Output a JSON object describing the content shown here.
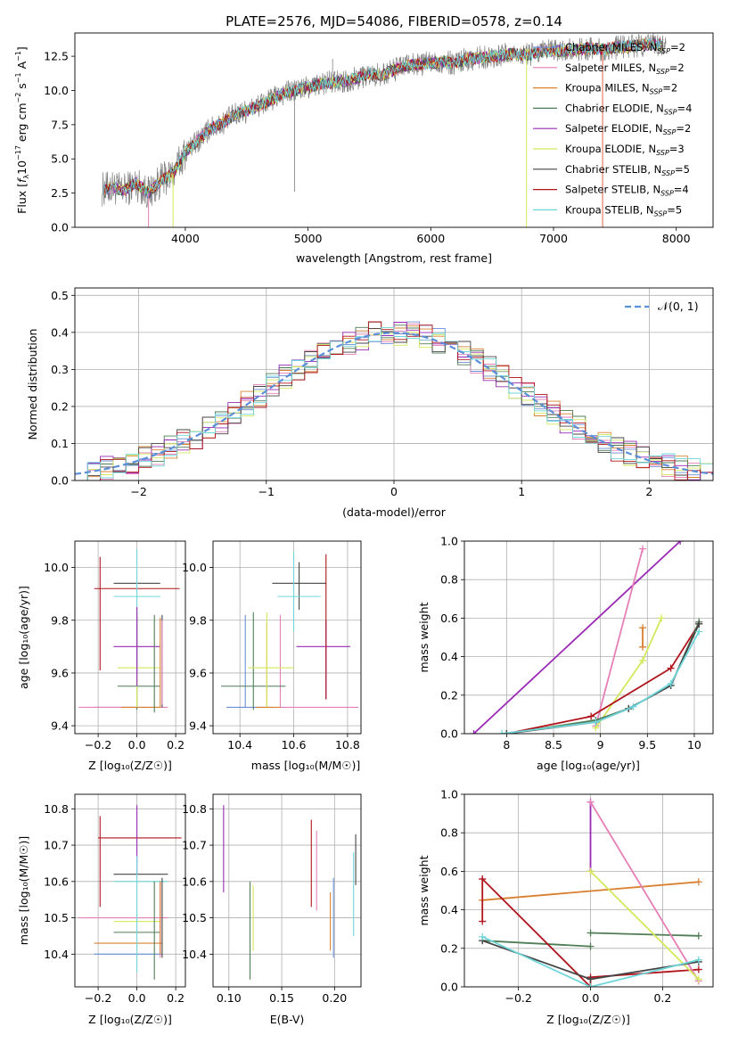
{
  "figure": {
    "title": "PLATE=2576, MJD=54086, FIBERID=0578, z=0.14"
  },
  "colors": {
    "chabrier_miles": "#6a8fd6",
    "salpeter_miles": "#e67fb6",
    "kroupa_miles": "#d98030",
    "chabrier_elodie": "#4f7d55",
    "salpeter_elodie": "#9a2ab5",
    "kroupa_elodie": "#d4e85c",
    "chabrier_stelib": "#454545",
    "salpeter_stelib": "#b0141c",
    "kroupa_stelib": "#6fd6da",
    "data": "#808080"
  },
  "chart_data": [
    {
      "id": "spectrum",
      "type": "line",
      "title": "PLATE=2576, MJD=54086, FIBERID=0578, z=0.14",
      "xlabel": "wavelength [Angstrom, rest frame]",
      "ylabel": "Flux [f_λ10^−17 erg cm^−2 s^−1 A^−1]",
      "xlim": [
        3100,
        8300
      ],
      "ylim": [
        0,
        14.2
      ],
      "xticks": [
        4000,
        5000,
        6000,
        7000,
        8000
      ],
      "yticks": [
        0.0,
        2.5,
        5.0,
        7.5,
        10.0,
        12.5
      ],
      "legend_position": "top-right",
      "grid": false,
      "data_anchors": {
        "x": [
          3350,
          3400,
          3500,
          3600,
          3700,
          3800,
          3900,
          4000,
          4100,
          4200,
          4300,
          4400,
          4500,
          4600,
          4700,
          4800,
          4900,
          5000,
          5100,
          5200,
          5300,
          5400,
          5500,
          5600,
          5700,
          5800,
          5900,
          6000,
          6100,
          6200,
          6300,
          6400,
          6500,
          6600,
          6700,
          6800,
          6900,
          7000,
          7100,
          7200,
          7300,
          7400,
          7600,
          7800,
          7900
        ],
        "y": [
          2.8,
          2.9,
          2.7,
          3.2,
          2.5,
          3.4,
          3.9,
          5.5,
          6.3,
          7.2,
          7.6,
          8.2,
          8.5,
          8.9,
          9.3,
          9.8,
          10.0,
          10.2,
          10.5,
          10.6,
          10.7,
          10.9,
          11.2,
          11.1,
          11.5,
          11.8,
          11.9,
          12.0,
          12.1,
          12.0,
          12.3,
          12.4,
          12.5,
          12.6,
          12.7,
          12.6,
          12.8,
          12.9,
          12.9,
          13.0,
          13.1,
          13.0,
          13.2,
          13.4,
          13.3
        ]
      },
      "series": [
        {
          "name": "Chabrier MILES, N_SSP=2",
          "name_main": "Chabrier MILES, N",
          "name_sub": "SSP",
          "name_tail": "=2",
          "color_key": "chabrier_miles"
        },
        {
          "name": "Salpeter MILES, N_SSP=2",
          "name_main": "Salpeter MILES, N",
          "name_sub": "SSP",
          "name_tail": "=2",
          "color_key": "salpeter_miles"
        },
        {
          "name": "Kroupa MILES, N_SSP=2",
          "name_main": "Kroupa MILES, N",
          "name_sub": "SSP",
          "name_tail": "=2",
          "color_key": "kroupa_miles"
        },
        {
          "name": "Chabrier ELODIE, N_SSP=4",
          "name_main": "Chabrier ELODIE, N",
          "name_sub": "SSP",
          "name_tail": "=4",
          "color_key": "chabrier_elodie"
        },
        {
          "name": "Salpeter ELODIE, N_SSP=2",
          "name_main": "Salpeter ELODIE, N",
          "name_sub": "SSP",
          "name_tail": "=2",
          "color_key": "salpeter_elodie"
        },
        {
          "name": "Kroupa ELODIE, N_SSP=3",
          "name_main": "Kroupa ELODIE, N",
          "name_sub": "SSP",
          "name_tail": "=3",
          "color_key": "kroupa_elodie"
        },
        {
          "name": "Chabrier STELIB, N_SSP=5",
          "name_main": "Chabrier STELIB, N",
          "name_sub": "SSP",
          "name_tail": "=5",
          "color_key": "chabrier_stelib"
        },
        {
          "name": "Salpeter STELIB, N_SSP=4",
          "name_main": "Salpeter STELIB, N",
          "name_sub": "SSP",
          "name_tail": "=4",
          "color_key": "salpeter_stelib"
        },
        {
          "name": "Kroupa STELIB, N_SSP=5",
          "name_main": "Kroupa STELIB, N",
          "name_sub": "SSP",
          "name_tail": "=5",
          "color_key": "kroupa_stelib"
        }
      ]
    },
    {
      "id": "residuals",
      "type": "line",
      "xlabel": "(data-model)/error",
      "ylabel": "Normed distribution",
      "xlim": [
        -2.5,
        2.5
      ],
      "ylim": [
        0,
        0.52
      ],
      "xticks": [
        -2,
        -1,
        0,
        1,
        2
      ],
      "xtick_labels": [
        "−2",
        "−1",
        "0",
        "1",
        "2"
      ],
      "yticks": [
        0.0,
        0.1,
        0.2,
        0.3,
        0.4,
        0.5
      ],
      "grid": true,
      "legend_position": "top-right",
      "reference_curve": {
        "name": "𝒩(0, 1)",
        "mean": 0,
        "sigma": 1,
        "style": "dashed",
        "color": "#5b8fd9"
      },
      "histogram_bins": {
        "start": -2.5,
        "width": 0.1,
        "count": 50
      }
    },
    {
      "id": "age_vs_Z",
      "type": "scatter",
      "xlabel": "Z [log₁₀(Z/Z☉)]",
      "ylabel": "age  [log₁₀(age/yr)]",
      "xlim": [
        -0.32,
        0.25
      ],
      "ylim": [
        9.37,
        10.1
      ],
      "xticks": [
        -0.2,
        0.0,
        0.2
      ],
      "xtick_labels": [
        "−0.2",
        "0.0",
        "0.2"
      ],
      "yticks": [
        9.4,
        9.6,
        9.8,
        10.0
      ],
      "grid": true,
      "points": [
        {
          "color_key": "chabrier_miles",
          "x": 0.0,
          "xerr": [
            0.22,
            0.22
          ],
          "y": 9.47,
          "yerr": [
            0.0,
            0.0
          ]
        },
        {
          "color_key": "salpeter_miles",
          "x": 0.0,
          "xerr": [
            0.0,
            0.0
          ],
          "y": 9.47,
          "yerr": [
            0.0,
            0.0
          ]
        },
        {
          "color_key": "kroupa_miles",
          "x": 0.0,
          "xerr": [
            0.0,
            0.0
          ],
          "y": 9.47,
          "yerr": [
            0.0,
            0.0
          ]
        },
        {
          "color_key": "chabrier_elodie",
          "x": 0.0,
          "xerr": [
            0.12,
            0.12
          ],
          "y": 9.55,
          "yerr": [
            0.09,
            0.0
          ]
        },
        {
          "color_key": "salpeter_elodie",
          "x": 0.0,
          "xerr": [
            0.12,
            0.12
          ],
          "y": 9.7,
          "yerr": [
            0.0,
            0.0
          ]
        },
        {
          "color_key": "kroupa_elodie",
          "x": 0.0,
          "xerr": [
            0.1,
            0.1
          ],
          "y": 9.62,
          "yerr": [
            0.0,
            0.0
          ]
        },
        {
          "color_key": "chabrier_stelib",
          "x": 0.0,
          "xerr": [
            0.12,
            0.12
          ],
          "y": 9.94,
          "yerr": [
            0.0,
            0.0
          ]
        },
        {
          "color_key": "salpeter_stelib",
          "x": 0.0,
          "xerr": [
            0.22,
            0.22
          ],
          "y": 9.92,
          "yerr": [
            0.0,
            0.0
          ]
        },
        {
          "color_key": "kroupa_stelib",
          "x": 0.0,
          "xerr": [
            0.12,
            0.12
          ],
          "y": 9.89,
          "yerr": [
            0.0,
            0.0
          ]
        }
      ]
    },
    {
      "id": "age_vs_mass",
      "type": "scatter",
      "xlabel": "mass [log₁₀(M/M☉)]",
      "xlim": [
        10.3,
        10.85
      ],
      "ylim": [
        9.37,
        10.1
      ],
      "xticks": [
        10.4,
        10.6,
        10.8
      ],
      "yticks": [
        9.4,
        9.6,
        9.8,
        10.0
      ],
      "grid": true
    },
    {
      "id": "weight_vs_age",
      "type": "line",
      "xlabel": "age  [log₁₀(age/yr)]",
      "ylabel": "mass weight",
      "xlim": [
        7.55,
        10.2
      ],
      "ylim": [
        0,
        1.0
      ],
      "xticks": [
        8.0,
        8.5,
        9.0,
        9.5,
        10.0
      ],
      "yticks": [
        0.0,
        0.2,
        0.4,
        0.6,
        0.8,
        1.0
      ],
      "grid": true,
      "series": [
        {
          "color_key": "salpeter_elodie",
          "x": [
            7.65,
            9.85
          ],
          "y": [
            0.0,
            1.0
          ]
        },
        {
          "color_key": "salpeter_miles",
          "x": [
            8.95,
            9.45
          ],
          "y": [
            0.04,
            0.96
          ]
        },
        {
          "color_key": "kroupa_miles",
          "x": [
            9.45,
            9.45
          ],
          "y": [
            0.45,
            0.55
          ]
        },
        {
          "color_key": "kroupa_elodie",
          "x": [
            8.95,
            9.45,
            9.65
          ],
          "y": [
            0.03,
            0.38,
            0.6
          ]
        },
        {
          "color_key": "salpeter_stelib",
          "x": [
            8.0,
            8.9,
            9.75,
            10.05
          ],
          "y": [
            0.0,
            0.09,
            0.34,
            0.57
          ]
        },
        {
          "color_key": "chabrier_elodie",
          "x": [
            8.0,
            8.95,
            9.3,
            9.75,
            10.05
          ],
          "y": [
            0.0,
            0.07,
            0.13,
            0.25,
            0.58
          ]
        },
        {
          "color_key": "chabrier_stelib",
          "x": [
            8.0,
            8.95,
            9.3,
            9.75,
            10.05
          ],
          "y": [
            0.0,
            0.06,
            0.13,
            0.25,
            0.57
          ]
        },
        {
          "color_key": "kroupa_stelib",
          "x": [
            7.95,
            8.95,
            9.35,
            9.75,
            10.05
          ],
          "y": [
            0.0,
            0.06,
            0.14,
            0.26,
            0.53
          ]
        }
      ]
    },
    {
      "id": "mass_vs_Z",
      "type": "scatter",
      "xlabel": "Z [log₁₀(Z/Z☉)]",
      "ylabel": "mass [log₁₀(M/M☉)]",
      "xlim": [
        -0.32,
        0.25
      ],
      "ylim": [
        10.31,
        10.84
      ],
      "xticks": [
        -0.2,
        0.0,
        0.2
      ],
      "xtick_labels": [
        "−0.2",
        "0.0",
        "0.2"
      ],
      "yticks": [
        10.4,
        10.5,
        10.6,
        10.7,
        10.8
      ],
      "grid": true
    },
    {
      "id": "mass_vs_EBV",
      "type": "scatter",
      "xlabel": "E(B-V)",
      "xlim": [
        0.085,
        0.225
      ],
      "ylim": [
        10.31,
        10.84
      ],
      "xticks": [
        0.1,
        0.15,
        0.2
      ],
      "xtick_labels": [
        "0.10",
        "0.15",
        "0.20"
      ],
      "yticks": [
        10.4,
        10.5,
        10.6,
        10.7,
        10.8
      ],
      "grid": true,
      "points": [
        {
          "color_key": "salpeter_elodie",
          "x": 0.095,
          "y": 10.69,
          "yerr": [
            0.12,
            0.12
          ]
        },
        {
          "color_key": "chabrier_elodie",
          "x": 0.12,
          "y": 10.47,
          "yerr": [
            0.14,
            0.13
          ]
        },
        {
          "color_key": "kroupa_elodie",
          "x": 0.123,
          "y": 10.5,
          "yerr": [
            0.09,
            0.09
          ]
        },
        {
          "color_key": "salpeter_stelib",
          "x": 0.178,
          "y": 10.65,
          "yerr": [
            0.12,
            0.12
          ]
        },
        {
          "color_key": "salpeter_miles",
          "x": 0.183,
          "y": 10.63,
          "yerr": [
            0.11,
            0.11
          ]
        },
        {
          "color_key": "kroupa_miles",
          "x": 0.196,
          "y": 10.49,
          "yerr": [
            0.08,
            0.08
          ]
        },
        {
          "color_key": "chabrier_miles",
          "x": 0.199,
          "y": 10.49,
          "yerr": [
            0.1,
            0.12
          ]
        },
        {
          "color_key": "kroupa_stelib",
          "x": 0.218,
          "y": 10.56,
          "yerr": [
            0.11,
            0.12
          ]
        },
        {
          "color_key": "chabrier_stelib",
          "x": 0.22,
          "y": 10.66,
          "yerr": [
            0.07,
            0.07
          ]
        }
      ]
    },
    {
      "id": "weight_vs_Z",
      "type": "line",
      "xlabel": "Z [log₁₀(Z/Z☉)]",
      "ylabel": "mass weight",
      "xlim": [
        -0.35,
        0.34
      ],
      "ylim": [
        0,
        1.0
      ],
      "xticks": [
        -0.2,
        0.0,
        0.2
      ],
      "xtick_labels": [
        "−0.2",
        "0.0",
        "0.2"
      ],
      "yticks": [
        0.0,
        0.2,
        0.4,
        0.6,
        0.8,
        1.0
      ],
      "grid": true,
      "series": [
        {
          "color_key": "kroupa_miles",
          "x": [
            -0.3,
            0.3
          ],
          "y": [
            0.45,
            0.545
          ]
        },
        {
          "color_key": "chabrier_elodie",
          "x": [
            -0.3,
            0.0
          ],
          "y": [
            0.24,
            0.21
          ]
        },
        {
          "color_key": "chabrier_elodie",
          "x": [
            0.0,
            0.3
          ],
          "y": [
            0.28,
            0.265
          ]
        },
        {
          "color_key": "salpeter_stelib",
          "x": [
            -0.3,
            -0.3,
            0.0,
            0.0,
            0.3
          ],
          "y": [
            0.34,
            0.56,
            0.0,
            0.05,
            0.09
          ]
        },
        {
          "color_key": "salpeter_elodie",
          "x": [
            0.0,
            0.0
          ],
          "y": [
            0.6,
            0.96
          ]
        },
        {
          "color_key": "salpeter_miles",
          "x": [
            0.0,
            0.3
          ],
          "y": [
            0.96,
            0.03
          ]
        },
        {
          "color_key": "kroupa_elodie",
          "x": [
            0.0,
            0.3
          ],
          "y": [
            0.6,
            0.04
          ]
        },
        {
          "color_key": "chabrier_stelib",
          "x": [
            -0.3,
            0.0,
            0.3
          ],
          "y": [
            0.24,
            0.04,
            0.13
          ]
        },
        {
          "color_key": "kroupa_stelib",
          "x": [
            -0.3,
            0.0,
            0.3
          ],
          "y": [
            0.26,
            0.0,
            0.14
          ]
        }
      ]
    }
  ]
}
